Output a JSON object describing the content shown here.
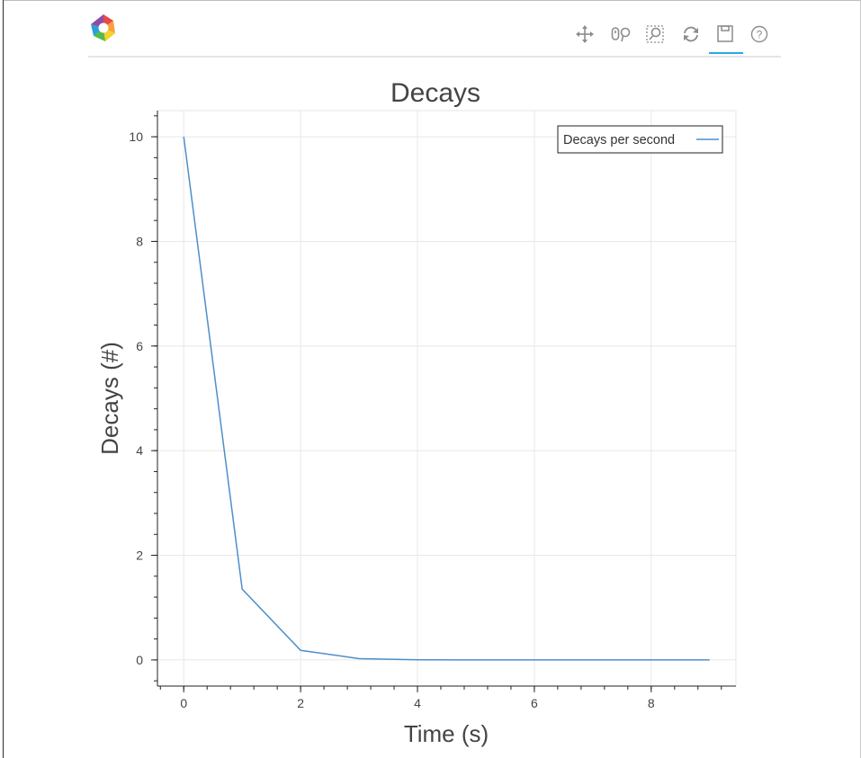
{
  "toolbar": {
    "logo_icon": "bokeh-logo",
    "tools": [
      {
        "name": "pan-tool-icon",
        "label": "Pan"
      },
      {
        "name": "wheel-zoom-tool-icon",
        "label": "Wheel Zoom"
      },
      {
        "name": "box-zoom-tool-icon",
        "label": "Box Zoom"
      },
      {
        "name": "reset-tool-icon",
        "label": "Reset"
      },
      {
        "name": "save-tool-icon",
        "label": "Save",
        "active": true
      },
      {
        "name": "help-tool-icon",
        "label": "Help"
      }
    ],
    "active_color": "#26aae1"
  },
  "chart_data": {
    "type": "line",
    "title": "Decays",
    "xlabel": "Time (s)",
    "ylabel": "Decays (#)",
    "x": [
      0,
      1,
      2,
      3,
      4,
      5,
      6,
      7,
      8,
      9
    ],
    "series": [
      {
        "name": "Decays per second",
        "color": "#4c8fc9",
        "values": [
          10,
          1.353,
          0.183,
          0.025,
          0.003,
          0.0005,
          6e-05,
          1e-05,
          1e-06,
          1e-07
        ]
      }
    ],
    "xlim": [
      -0.45,
      9.45
    ],
    "ylim": [
      -0.5,
      10.5
    ],
    "xticks": [
      0,
      2,
      4,
      6,
      8
    ],
    "yticks": [
      0,
      2,
      4,
      6,
      8,
      10
    ],
    "xticklabels": [
      "0",
      "2",
      "4",
      "6",
      "8"
    ],
    "yticklabels": [
      "0",
      "2",
      "4",
      "6",
      "8",
      "10"
    ],
    "grid": true,
    "legend_position": "top-right"
  }
}
